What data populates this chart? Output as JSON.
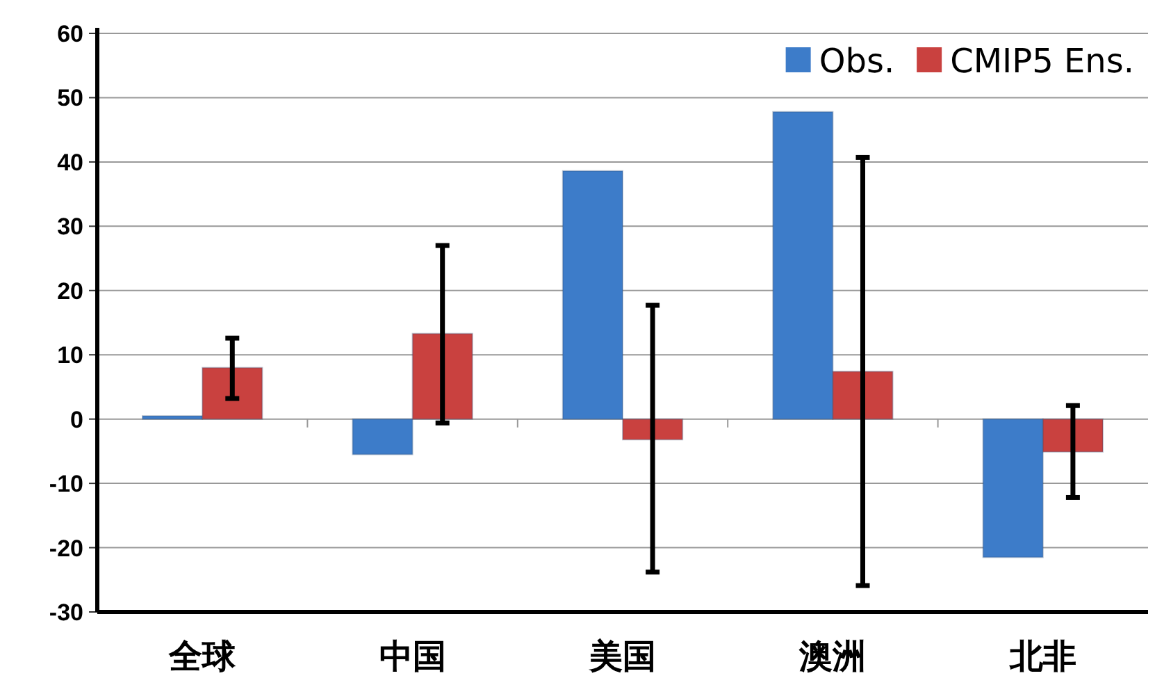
{
  "chart_data": {
    "type": "bar",
    "categories": [
      "全球",
      "中国",
      "美国",
      "澳洲",
      "北非"
    ],
    "series": [
      {
        "name": "Obs.",
        "color": "#3d7cc9",
        "values": [
          0.5,
          -5.5,
          38.6,
          47.8,
          -21.5
        ]
      },
      {
        "name": "CMIP5 Ens.",
        "color": "#c9413f",
        "values": [
          8.0,
          13.3,
          -3.2,
          7.4,
          -5.1
        ],
        "errors": [
          [
            3.2,
            12.6
          ],
          [
            -0.6,
            27.0
          ],
          [
            -23.8,
            17.7
          ],
          [
            -25.9,
            40.7
          ],
          [
            -12.2,
            2.1
          ]
        ]
      }
    ],
    "ylim": [
      -30,
      60
    ],
    "yticks": [
      -30,
      -20,
      -10,
      0,
      10,
      20,
      30,
      40,
      50,
      60
    ],
    "grid": "y",
    "legend": "top right"
  }
}
